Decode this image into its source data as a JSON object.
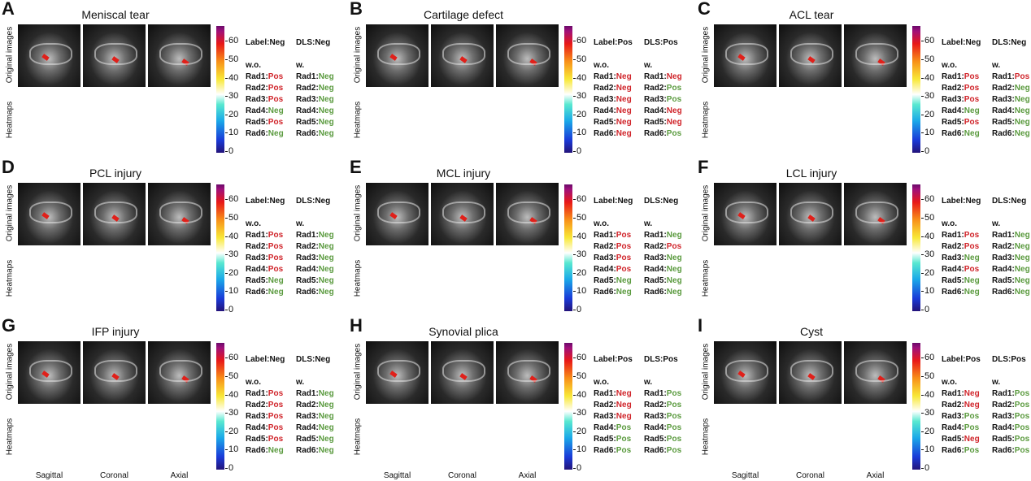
{
  "row_labels": {
    "top": "Original images",
    "bottom": "Heatmaps"
  },
  "view_labels": [
    "Sagittal",
    "Coronal",
    "Axial"
  ],
  "colorbar_ticks": [
    "0",
    "10",
    "20",
    "30",
    "40",
    "50",
    "60"
  ],
  "colors": {
    "correct": "#5a9a3e",
    "incorrect": "#d0242a"
  },
  "panels": [
    {
      "letter": "A",
      "title": "Meniscal tear",
      "label": "Label:Neg",
      "dls": "DLS:Neg",
      "wo_header": "w.o.",
      "w_header": "w.",
      "wo": [
        {
          "r": "Rad1:",
          "v": "Pos"
        },
        {
          "r": "Rad2:",
          "v": "Pos"
        },
        {
          "r": "Rad3:",
          "v": "Pos"
        },
        {
          "r": "Rad4:",
          "v": "Neg"
        },
        {
          "r": "Rad5:",
          "v": "Pos"
        },
        {
          "r": "Rad6:",
          "v": "Neg"
        }
      ],
      "w": [
        {
          "r": "Rad1:",
          "v": "Neg"
        },
        {
          "r": "Rad2:",
          "v": "Neg"
        },
        {
          "r": "Rad3:",
          "v": "Neg"
        },
        {
          "r": "Rad4:",
          "v": "Neg"
        },
        {
          "r": "Rad5:",
          "v": "Neg"
        },
        {
          "r": "Rad6:",
          "v": "Neg"
        }
      ]
    },
    {
      "letter": "B",
      "title": "Cartilage defect",
      "label": "Label:Pos",
      "dls": "DLS:Pos",
      "wo_header": "w.o.",
      "w_header": "w.",
      "wo": [
        {
          "r": "Rad1:",
          "v": "Neg"
        },
        {
          "r": "Rad2:",
          "v": "Neg"
        },
        {
          "r": "Rad3:",
          "v": "Neg"
        },
        {
          "r": "Rad4:",
          "v": "Neg"
        },
        {
          "r": "Rad5:",
          "v": "Neg"
        },
        {
          "r": "Rad6:",
          "v": "Neg"
        }
      ],
      "w": [
        {
          "r": "Rad1:",
          "v": "Neg"
        },
        {
          "r": "Rad2:",
          "v": "Pos"
        },
        {
          "r": "Rad3:",
          "v": "Pos"
        },
        {
          "r": "Rad4:",
          "v": "Neg"
        },
        {
          "r": "Rad5:",
          "v": "Neg"
        },
        {
          "r": "Rad6:",
          "v": "Pos"
        }
      ]
    },
    {
      "letter": "C",
      "title": "ACL tear",
      "label": "Label:Neg",
      "dls": "DLS:Neg",
      "wo_header": "w.o.",
      "w_header": "w.",
      "wo": [
        {
          "r": "Rad1:",
          "v": "Pos"
        },
        {
          "r": "Rad2:",
          "v": "Pos"
        },
        {
          "r": "Rad3:",
          "v": "Pos"
        },
        {
          "r": "Rad4:",
          "v": "Neg"
        },
        {
          "r": "Rad5:",
          "v": "Pos"
        },
        {
          "r": "Rad6:",
          "v": "Neg"
        }
      ],
      "w": [
        {
          "r": "Rad1:",
          "v": "Pos"
        },
        {
          "r": "Rad2:",
          "v": "Neg"
        },
        {
          "r": "Rad3:",
          "v": "Neg"
        },
        {
          "r": "Rad4:",
          "v": "Neg"
        },
        {
          "r": "Rad5:",
          "v": "Neg"
        },
        {
          "r": "Rad6:",
          "v": "Neg"
        }
      ]
    },
    {
      "letter": "D",
      "title": "PCL injury",
      "label": "Label:Neg",
      "dls": "DLS:Neg",
      "wo_header": "w.o.",
      "w_header": "w.",
      "wo": [
        {
          "r": "Rad1:",
          "v": "Pos"
        },
        {
          "r": "Rad2:",
          "v": "Pos"
        },
        {
          "r": "Rad3:",
          "v": "Pos"
        },
        {
          "r": "Rad4:",
          "v": "Pos"
        },
        {
          "r": "Rad5:",
          "v": "Neg"
        },
        {
          "r": "Rad6:",
          "v": "Neg"
        }
      ],
      "w": [
        {
          "r": "Rad1:",
          "v": "Neg"
        },
        {
          "r": "Rad2:",
          "v": "Neg"
        },
        {
          "r": "Rad3:",
          "v": "Neg"
        },
        {
          "r": "Rad4:",
          "v": "Neg"
        },
        {
          "r": "Rad5:",
          "v": "Neg"
        },
        {
          "r": "Rad6:",
          "v": "Neg"
        }
      ]
    },
    {
      "letter": "E",
      "title": "MCL injury",
      "label": "Label:Neg",
      "dls": "DLS:Neg",
      "wo_header": "w.o.",
      "w_header": "w.",
      "wo": [
        {
          "r": "Rad1:",
          "v": "Pos"
        },
        {
          "r": "Rad2:",
          "v": "Pos"
        },
        {
          "r": "Rad3:",
          "v": "Pos"
        },
        {
          "r": "Rad4:",
          "v": "Pos"
        },
        {
          "r": "Rad5:",
          "v": "Neg"
        },
        {
          "r": "Rad6:",
          "v": "Neg"
        }
      ],
      "w": [
        {
          "r": "Rad1:",
          "v": "Neg"
        },
        {
          "r": "Rad2:",
          "v": "Pos"
        },
        {
          "r": "Rad3:",
          "v": "Neg"
        },
        {
          "r": "Rad4:",
          "v": "Neg"
        },
        {
          "r": "Rad5:",
          "v": "Neg"
        },
        {
          "r": "Rad6:",
          "v": "Neg"
        }
      ]
    },
    {
      "letter": "F",
      "title": "LCL injury",
      "label": "Label:Neg",
      "dls": "DLS:Neg",
      "wo_header": "w.o.",
      "w_header": "w.",
      "wo": [
        {
          "r": "Rad1:",
          "v": "Pos"
        },
        {
          "r": "Rad2:",
          "v": "Pos"
        },
        {
          "r": "Rad3:",
          "v": "Neg"
        },
        {
          "r": "Rad4:",
          "v": "Pos"
        },
        {
          "r": "Rad5:",
          "v": "Neg"
        },
        {
          "r": "Rad6:",
          "v": "Neg"
        }
      ],
      "w": [
        {
          "r": "Rad1:",
          "v": "Neg"
        },
        {
          "r": "Rad2:",
          "v": "Neg"
        },
        {
          "r": "Rad3:",
          "v": "Neg"
        },
        {
          "r": "Rad4:",
          "v": "Neg"
        },
        {
          "r": "Rad5:",
          "v": "Neg"
        },
        {
          "r": "Rad6:",
          "v": "Neg"
        }
      ]
    },
    {
      "letter": "G",
      "title": "IFP injury",
      "label": "Label:Neg",
      "dls": "DLS:Neg",
      "wo_header": "w.o.",
      "w_header": "w.",
      "wo": [
        {
          "r": "Rad1:",
          "v": "Pos"
        },
        {
          "r": "Rad2:",
          "v": "Pos"
        },
        {
          "r": "Rad3:",
          "v": "Pos"
        },
        {
          "r": "Rad4:",
          "v": "Pos"
        },
        {
          "r": "Rad5:",
          "v": "Pos"
        },
        {
          "r": "Rad6:",
          "v": "Neg"
        }
      ],
      "w": [
        {
          "r": "Rad1:",
          "v": "Neg"
        },
        {
          "r": "Rad2:",
          "v": "Neg"
        },
        {
          "r": "Rad3:",
          "v": "Neg"
        },
        {
          "r": "Rad4:",
          "v": "Neg"
        },
        {
          "r": "Rad5:",
          "v": "Neg"
        },
        {
          "r": "Rad6:",
          "v": "Neg"
        }
      ]
    },
    {
      "letter": "H",
      "title": "Synovial plica",
      "label": "Label:Pos",
      "dls": "DLS:Pos",
      "wo_header": "w.o.",
      "w_header": "w.",
      "wo": [
        {
          "r": "Rad1:",
          "v": "Neg"
        },
        {
          "r": "Rad2:",
          "v": "Neg"
        },
        {
          "r": "Rad3:",
          "v": "Neg"
        },
        {
          "r": "Rad4:",
          "v": "Pos"
        },
        {
          "r": "Rad5:",
          "v": "Pos"
        },
        {
          "r": "Rad6:",
          "v": "Pos"
        }
      ],
      "w": [
        {
          "r": "Rad1:",
          "v": "Pos"
        },
        {
          "r": "Rad2:",
          "v": "Pos"
        },
        {
          "r": "Rad3:",
          "v": "Pos"
        },
        {
          "r": "Rad4:",
          "v": "Pos"
        },
        {
          "r": "Rad5:",
          "v": "Pos"
        },
        {
          "r": "Rad6:",
          "v": "Pos"
        }
      ]
    },
    {
      "letter": "I",
      "title": "Cyst",
      "label": "Label:Pos",
      "dls": "DLS:Pos",
      "wo_header": "w.o.",
      "w_header": "w.",
      "wo": [
        {
          "r": "Rad1:",
          "v": "Neg"
        },
        {
          "r": "Rad2:",
          "v": "Neg"
        },
        {
          "r": "Rad3:",
          "v": "Pos"
        },
        {
          "r": "Rad4:",
          "v": "Pos"
        },
        {
          "r": "Rad5:",
          "v": "Neg"
        },
        {
          "r": "Rad6:",
          "v": "Pos"
        }
      ],
      "w": [
        {
          "r": "Rad1:",
          "v": "Pos"
        },
        {
          "r": "Rad2:",
          "v": "Pos"
        },
        {
          "r": "Rad3:",
          "v": "Pos"
        },
        {
          "r": "Rad4:",
          "v": "Pos"
        },
        {
          "r": "Rad5:",
          "v": "Pos"
        },
        {
          "r": "Rad6:",
          "v": "Pos"
        }
      ]
    }
  ]
}
